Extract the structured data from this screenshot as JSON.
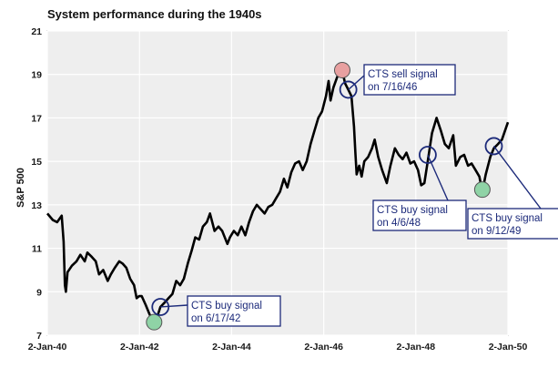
{
  "chart_data": {
    "type": "line",
    "title": "System performance during the 1940s",
    "xlabel": "",
    "ylabel": "S&P 500",
    "xlim": [
      "1940-01-02",
      "1950-01-02"
    ],
    "ylim": [
      7,
      21
    ],
    "x_ticks": [
      "2-Jan-40",
      "2-Jan-42",
      "2-Jan-44",
      "2-Jan-46",
      "2-Jan-48",
      "2-Jan-50"
    ],
    "y_ticks": [
      7,
      9,
      11,
      13,
      15,
      17,
      19,
      21
    ],
    "grid": true,
    "series": [
      {
        "color": "#000000",
        "points": [
          [
            "1940-01-02",
            12.6
          ],
          [
            "1940-02-15",
            12.3
          ],
          [
            "1940-03-20",
            12.2
          ],
          [
            "1940-04-25",
            12.5
          ],
          [
            "1940-05-10",
            11.3
          ],
          [
            "1940-05-20",
            9.3
          ],
          [
            "1940-05-28",
            9.0
          ],
          [
            "1940-06-10",
            9.9
          ],
          [
            "1940-07-15",
            10.2
          ],
          [
            "1940-08-20",
            10.4
          ],
          [
            "1940-09-20",
            10.7
          ],
          [
            "1940-10-25",
            10.4
          ],
          [
            "1940-11-15",
            10.8
          ],
          [
            "1940-12-20",
            10.6
          ],
          [
            "1941-01-20",
            10.4
          ],
          [
            "1941-02-15",
            9.8
          ],
          [
            "1941-03-20",
            10.0
          ],
          [
            "1941-04-25",
            9.5
          ],
          [
            "1941-05-20",
            9.8
          ],
          [
            "1941-06-20",
            10.1
          ],
          [
            "1941-07-25",
            10.4
          ],
          [
            "1941-08-20",
            10.3
          ],
          [
            "1941-09-20",
            10.1
          ],
          [
            "1941-10-20",
            9.6
          ],
          [
            "1941-11-20",
            9.3
          ],
          [
            "1941-12-10",
            8.7
          ],
          [
            "1941-12-30",
            8.8
          ],
          [
            "1942-01-20",
            8.8
          ],
          [
            "1942-02-20",
            8.4
          ],
          [
            "1942-03-20",
            8.0
          ],
          [
            "1942-04-28",
            7.5
          ],
          [
            "1942-05-20",
            7.8
          ],
          [
            "1942-06-17",
            8.3
          ],
          [
            "1942-07-20",
            8.5
          ],
          [
            "1942-08-20",
            8.7
          ],
          [
            "1942-09-20",
            8.9
          ],
          [
            "1942-10-20",
            9.5
          ],
          [
            "1942-11-20",
            9.3
          ],
          [
            "1942-12-20",
            9.6
          ],
          [
            "1943-01-20",
            10.3
          ],
          [
            "1943-02-20",
            10.9
          ],
          [
            "1943-03-20",
            11.5
          ],
          [
            "1943-04-20",
            11.4
          ],
          [
            "1943-05-20",
            12.0
          ],
          [
            "1943-06-20",
            12.2
          ],
          [
            "1943-07-15",
            12.6
          ],
          [
            "1943-08-20",
            11.8
          ],
          [
            "1943-09-20",
            12.0
          ],
          [
            "1943-10-20",
            11.8
          ],
          [
            "1943-11-30",
            11.2
          ],
          [
            "1943-12-20",
            11.5
          ],
          [
            "1944-01-20",
            11.8
          ],
          [
            "1944-02-20",
            11.6
          ],
          [
            "1944-03-20",
            12.0
          ],
          [
            "1944-04-20",
            11.6
          ],
          [
            "1944-05-20",
            12.2
          ],
          [
            "1944-06-20",
            12.7
          ],
          [
            "1944-07-20",
            13.0
          ],
          [
            "1944-08-20",
            12.8
          ],
          [
            "1944-09-20",
            12.6
          ],
          [
            "1944-10-20",
            12.9
          ],
          [
            "1944-11-20",
            13.0
          ],
          [
            "1944-12-20",
            13.3
          ],
          [
            "1945-01-20",
            13.6
          ],
          [
            "1945-02-20",
            14.2
          ],
          [
            "1945-03-20",
            13.8
          ],
          [
            "1945-04-20",
            14.5
          ],
          [
            "1945-05-20",
            14.9
          ],
          [
            "1945-06-20",
            15.0
          ],
          [
            "1945-07-20",
            14.6
          ],
          [
            "1945-08-20",
            15.0
          ],
          [
            "1945-09-20",
            15.8
          ],
          [
            "1945-10-20",
            16.4
          ],
          [
            "1945-11-20",
            17.0
          ],
          [
            "1945-12-20",
            17.3
          ],
          [
            "1946-01-20",
            18.0
          ],
          [
            "1946-02-10",
            18.7
          ],
          [
            "1946-02-25",
            17.8
          ],
          [
            "1946-03-20",
            18.4
          ],
          [
            "1946-04-20",
            18.9
          ],
          [
            "1946-05-29",
            19.2
          ],
          [
            "1946-06-20",
            18.6
          ],
          [
            "1946-07-16",
            18.3
          ],
          [
            "1946-08-10",
            18.0
          ],
          [
            "1946-08-30",
            16.6
          ],
          [
            "1946-09-10",
            15.4
          ],
          [
            "1946-09-20",
            14.4
          ],
          [
            "1946-10-10",
            14.8
          ],
          [
            "1946-10-30",
            14.3
          ],
          [
            "1946-11-20",
            15.0
          ],
          [
            "1946-12-20",
            15.2
          ],
          [
            "1947-01-20",
            15.6
          ],
          [
            "1947-02-10",
            16.0
          ],
          [
            "1947-03-10",
            15.2
          ],
          [
            "1947-04-10",
            14.6
          ],
          [
            "1947-05-17",
            14.0
          ],
          [
            "1947-06-15",
            14.8
          ],
          [
            "1947-07-20",
            15.6
          ],
          [
            "1947-08-20",
            15.3
          ],
          [
            "1947-09-20",
            15.1
          ],
          [
            "1947-10-20",
            15.4
          ],
          [
            "1947-11-20",
            14.9
          ],
          [
            "1947-12-20",
            15.0
          ],
          [
            "1948-01-20",
            14.6
          ],
          [
            "1948-02-14",
            13.9
          ],
          [
            "1948-03-10",
            14.0
          ],
          [
            "1948-04-06",
            15.0
          ],
          [
            "1948-05-10",
            16.3
          ],
          [
            "1948-06-15",
            17.0
          ],
          [
            "1948-07-20",
            16.4
          ],
          [
            "1948-08-20",
            15.8
          ],
          [
            "1948-09-20",
            15.6
          ],
          [
            "1948-10-25",
            16.2
          ],
          [
            "1948-11-15",
            14.8
          ],
          [
            "1948-12-20",
            15.2
          ],
          [
            "1949-01-20",
            15.3
          ],
          [
            "1949-02-20",
            14.8
          ],
          [
            "1949-03-20",
            14.9
          ],
          [
            "1949-04-20",
            14.6
          ],
          [
            "1949-05-20",
            14.3
          ],
          [
            "1949-06-13",
            13.6
          ],
          [
            "1949-07-10",
            14.4
          ],
          [
            "1949-08-15",
            15.2
          ],
          [
            "1949-09-12",
            15.6
          ],
          [
            "1949-10-15",
            15.8
          ],
          [
            "1949-11-15",
            16.0
          ],
          [
            "1949-12-15",
            16.5
          ],
          [
            "1950-01-02",
            16.8
          ]
        ]
      }
    ],
    "markers": [
      {
        "date": "1942-04-28",
        "value": 7.6,
        "kind": "low",
        "fill": "#8fd3a6"
      },
      {
        "date": "1946-05-29",
        "value": 19.2,
        "kind": "high",
        "fill": "#e8a0a0"
      },
      {
        "date": "1949-06-13",
        "value": 13.7,
        "kind": "low",
        "fill": "#8fd3a6"
      }
    ],
    "annotations": [
      {
        "date": "1942-06-17",
        "value": 8.3,
        "line1": "CTS buy signal",
        "line2": "on 6/17/42"
      },
      {
        "date": "1946-07-16",
        "value": 18.3,
        "line1": "CTS sell signal",
        "line2": "on 7/16/46"
      },
      {
        "date": "1948-04-06",
        "value": 15.3,
        "line1": "CTS buy signal",
        "line2": "on 4/6/48"
      },
      {
        "date": "1949-09-12",
        "value": 15.7,
        "line1": "CTS buy signal",
        "line2": "on 9/12/49"
      }
    ],
    "colors": {
      "plot_background": "#eeeeee",
      "grid": "#ffffff",
      "line": "#000000",
      "signal_circle": "#1c2a7a",
      "callout_border": "#1c2a7a"
    }
  }
}
